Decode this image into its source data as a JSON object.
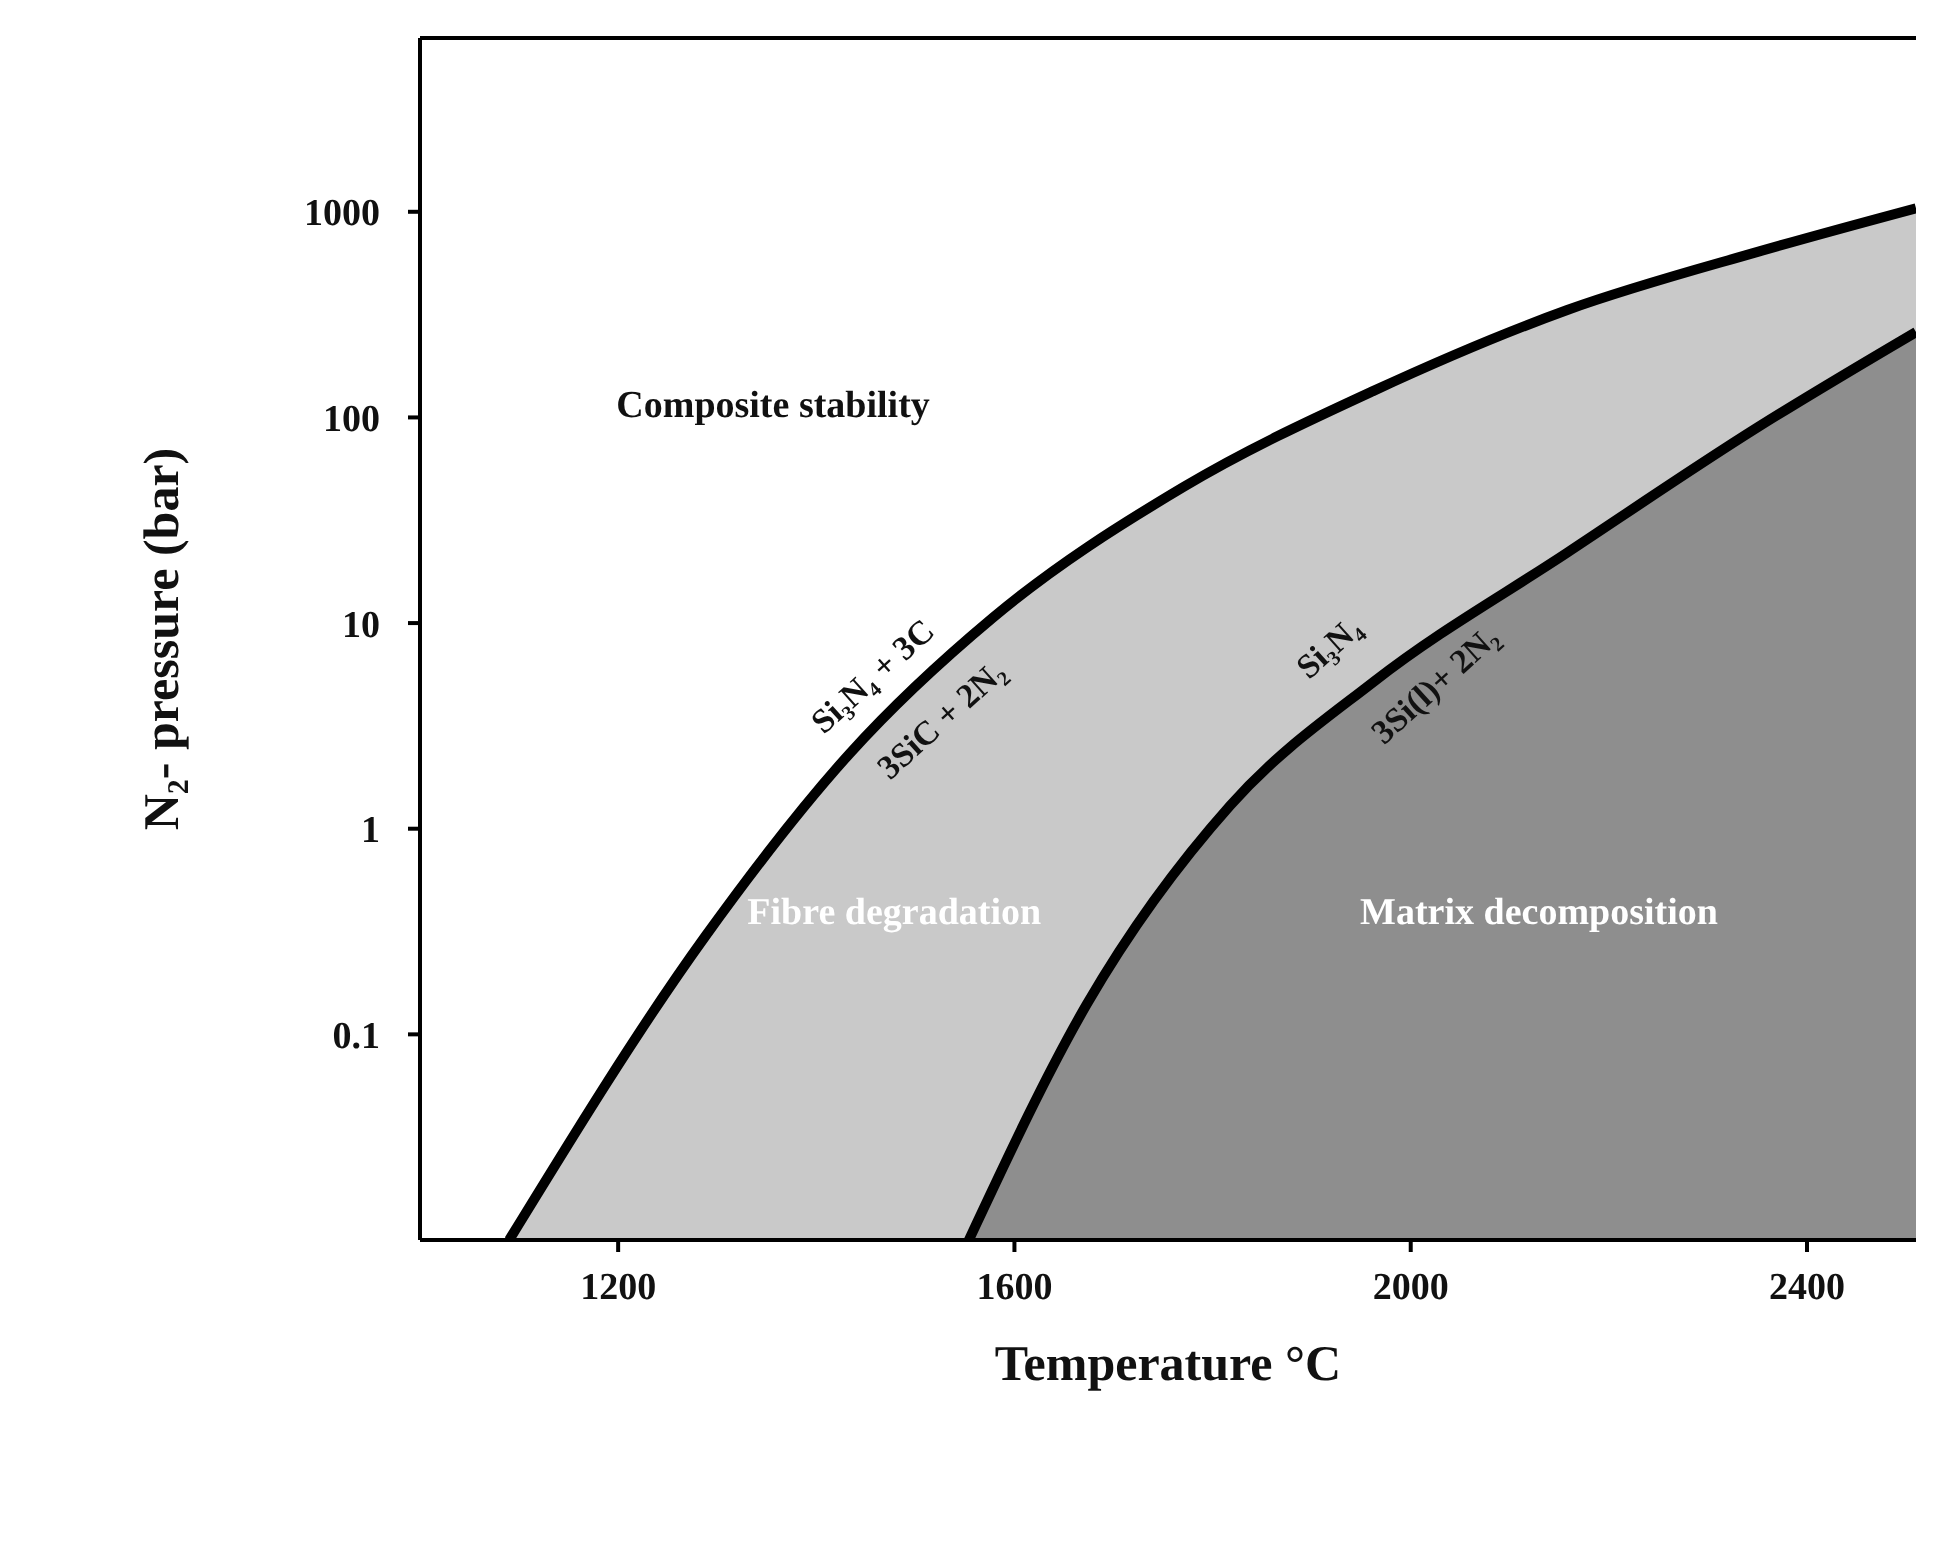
{
  "chart_data": {
    "type": "area",
    "xlabel": "Temperature °C",
    "ylabel": "N₂- pressure (bar)",
    "log": "y",
    "grid": false,
    "legend": false,
    "xlim": [
      1000,
      2510
    ],
    "xticks": [
      1200,
      1600,
      2000,
      2400
    ],
    "ylim": [
      0.01,
      7000
    ],
    "yticks": [
      0.1,
      1,
      10,
      100,
      1000
    ],
    "series": [
      {
        "color": "#c9c9c9",
        "x": [
          1090,
          1288,
          1433,
          1578,
          1771,
          1963,
          2158,
          2351,
          2510
        ],
        "values": [
          0.01,
          0.3,
          2.3,
          10.6,
          46,
          135,
          333,
          640,
          1040
        ]
      },
      {
        "color": "#8e8e8e",
        "x": [
          1554,
          1673,
          1818,
          1963,
          2158,
          2351,
          2510
        ],
        "values": [
          0.01,
          0.14,
          1.3,
          5.2,
          22,
          90,
          260
        ]
      }
    ],
    "annotations": [
      "Composite stability",
      "Fibre degradation",
      "Matrix decomposition",
      "Si₃N₄ + 3C",
      "3SiC + 2N₂",
      "Si₃N₄",
      "3Si(l)+ 2N₂"
    ]
  }
}
